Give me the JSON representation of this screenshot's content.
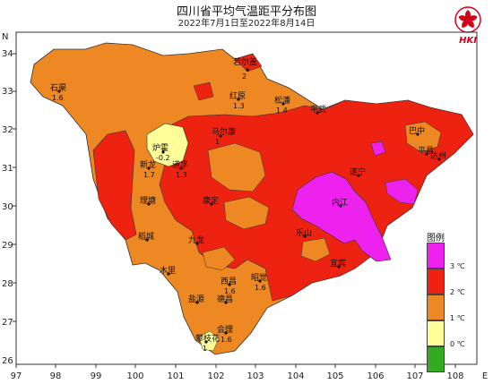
{
  "title": "四川省平均气温距平分布图",
  "subtitle": "2022年7月1日至2022年8月14日",
  "logo_text": "HKI",
  "axes": {
    "x_ticks": [
      "97",
      "98",
      "99",
      "100",
      "101",
      "102",
      "103",
      "104",
      "105",
      "106",
      "107",
      "108"
    ],
    "x_unit": "E",
    "y_ticks": [
      "34",
      "33",
      "32",
      "31",
      "30",
      "29",
      "28",
      "27",
      "26"
    ],
    "y_unit": "N"
  },
  "legend": {
    "title": "图例",
    "items": [
      {
        "label": "3 ℃",
        "color": "#ee22ee"
      },
      {
        "label": "2 ℃",
        "color": "#ee2211"
      },
      {
        "label": "1 ℃",
        "color": "#ee8822"
      },
      {
        "label": "0 ℃",
        "color": "#ffff99"
      },
      {
        "label": "",
        "color": "#33aa22"
      }
    ]
  },
  "colors": {
    "anomaly_3": "#ee22ee",
    "anomaly_2": "#ee2211",
    "anomaly_1": "#ee8822",
    "anomaly_0": "#ffff99",
    "below_0": "#33aa22",
    "logo": "#d4001a"
  },
  "stations": [
    {
      "name": "若尔盖",
      "value": "2"
    },
    {
      "name": "石渠",
      "value": "1.6"
    },
    {
      "name": "红原",
      "value": "1.3"
    },
    {
      "name": "松潘",
      "value": "1.4"
    },
    {
      "name": "马尔康",
      "value": "1"
    },
    {
      "name": "平武",
      "value": ""
    },
    {
      "name": "炉霍",
      "value": "-0.2"
    },
    {
      "name": "新龙",
      "value": "1.7"
    },
    {
      "name": "道孚",
      "value": "1.3"
    },
    {
      "name": "理塘",
      "value": ""
    },
    {
      "name": "康定",
      "value": ""
    },
    {
      "name": "巴中",
      "value": ""
    },
    {
      "name": "平昌",
      "value": ""
    },
    {
      "name": "达州",
      "value": ""
    },
    {
      "name": "遂宁",
      "value": ""
    },
    {
      "name": "内江",
      "value": ""
    },
    {
      "name": "稻城",
      "value": ""
    },
    {
      "name": "九龙",
      "value": ""
    },
    {
      "name": "木里",
      "value": ""
    },
    {
      "name": "西昌",
      "value": "1.6"
    },
    {
      "name": "昭觉",
      "value": "1.6"
    },
    {
      "name": "盐源",
      "value": ""
    },
    {
      "name": "德昌",
      "value": ""
    },
    {
      "name": "会理",
      "value": "1.6"
    },
    {
      "name": "攀枝花",
      "value": "1"
    },
    {
      "name": "乐山",
      "value": ""
    },
    {
      "name": "宜宾",
      "value": ""
    }
  ]
}
